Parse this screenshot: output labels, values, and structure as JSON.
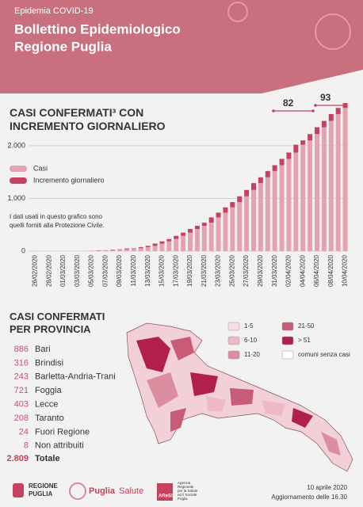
{
  "header": {
    "kicker": "Epidemia COVID-19",
    "title": [
      "Bollettino Epidemiologico",
      "Regione Puglia"
    ]
  },
  "chart_data": {
    "type": "stacked-bar",
    "title": "CASI CONFERMATI³ CON INCREMENTO GIORNALIERO",
    "note": "I dati usati in questo grafico sono quelli forniti alla Protezione Civile.",
    "annotations": [
      82,
      93
    ],
    "categories": [
      "26/02/2020",
      null,
      "28/02/2020",
      null,
      "01/03/2020",
      null,
      "03/03/2020",
      null,
      "05/03/2020",
      null,
      "07/03/2020",
      null,
      "09/03/2020",
      null,
      "11/03/2020",
      null,
      "13/03/2020",
      null,
      "15/03/2020",
      null,
      "17/03/2020",
      null,
      "19/03/2020",
      null,
      "21/03/2020",
      null,
      "23/03/2020",
      null,
      "25/03/2020",
      null,
      "27/03/2020",
      null,
      "29/03/2020",
      null,
      "31/03/2020",
      null,
      "02/04/2020",
      null,
      "04/04/2020",
      null,
      "06/04/2020",
      null,
      "08/04/2020",
      null,
      "10/04/2020"
    ],
    "series": [
      {
        "name": "Casi",
        "color": "#e3a3b0",
        "values": [
          0,
          1,
          1,
          1,
          1,
          1,
          1,
          1,
          3,
          6,
          13,
          16,
          26,
          34,
          50,
          57,
          77,
          100,
          143,
          186,
          230,
          290,
          350,
          420,
          480,
          540,
          640,
          730,
          830,
          930,
          1040,
          1160,
          1290,
          1400,
          1520,
          1630,
          1750,
          1870,
          2018,
          2100,
          2220,
          2350,
          2470,
          2600,
          2716
        ]
      },
      {
        "name": "Incremento giornaliero",
        "color": "#c4415f",
        "values": [
          1,
          0,
          0,
          0,
          0,
          0,
          0,
          2,
          3,
          7,
          3,
          10,
          8,
          16,
          7,
          20,
          23,
          43,
          43,
          44,
          60,
          60,
          70,
          60,
          60,
          100,
          90,
          100,
          100,
          110,
          120,
          130,
          110,
          120,
          110,
          120,
          120,
          148,
          82,
          120,
          130,
          120,
          130,
          116,
          93
        ]
      }
    ],
    "ylim": [
      0,
      2900
    ],
    "yticks": [
      0,
      {
        "value": 1000,
        "label": "1.000"
      },
      {
        "value": 2000,
        "label": "2.000"
      }
    ],
    "grid": true,
    "legend_position": "left"
  },
  "province": {
    "title": "CASI CONFERMATI PER PROVINCIA",
    "rows": [
      [
        886,
        "Bari"
      ],
      [
        316,
        "Brindisi"
      ],
      [
        243,
        "Barletta-Andria-Trani"
      ],
      [
        721,
        "Foggia"
      ],
      [
        403,
        "Lecce"
      ],
      [
        208,
        "Taranto"
      ],
      [
        24,
        "Fuori Regione"
      ],
      [
        8,
        "Non attribuiti"
      ]
    ],
    "total": [
      "2.809",
      "Totale"
    ]
  },
  "map_legend": [
    {
      "label": "1-5",
      "color": "#f7e0e4"
    },
    {
      "label": "6-10",
      "color": "#eeb9c4"
    },
    {
      "label": "11-20",
      "color": "#dc8ea1"
    },
    {
      "label": "21-50",
      "color": "#c85b78"
    },
    {
      "label": "> 51",
      "color": "#b0204b"
    },
    {
      "label": "comuni senza casi",
      "color": "#ffffff"
    }
  ],
  "footer": {
    "regione": [
      "REGIONE",
      "PUGLIA"
    ],
    "salute": [
      "Puglia",
      "Salute"
    ],
    "aress": "AReSS",
    "aress_text": [
      "Agenzia",
      "Regionale",
      "per la Salute",
      "ed il Sociale",
      "Puglia"
    ],
    "date": "10 aprile 2020",
    "update": "Aggiornamento delle 16.30"
  }
}
